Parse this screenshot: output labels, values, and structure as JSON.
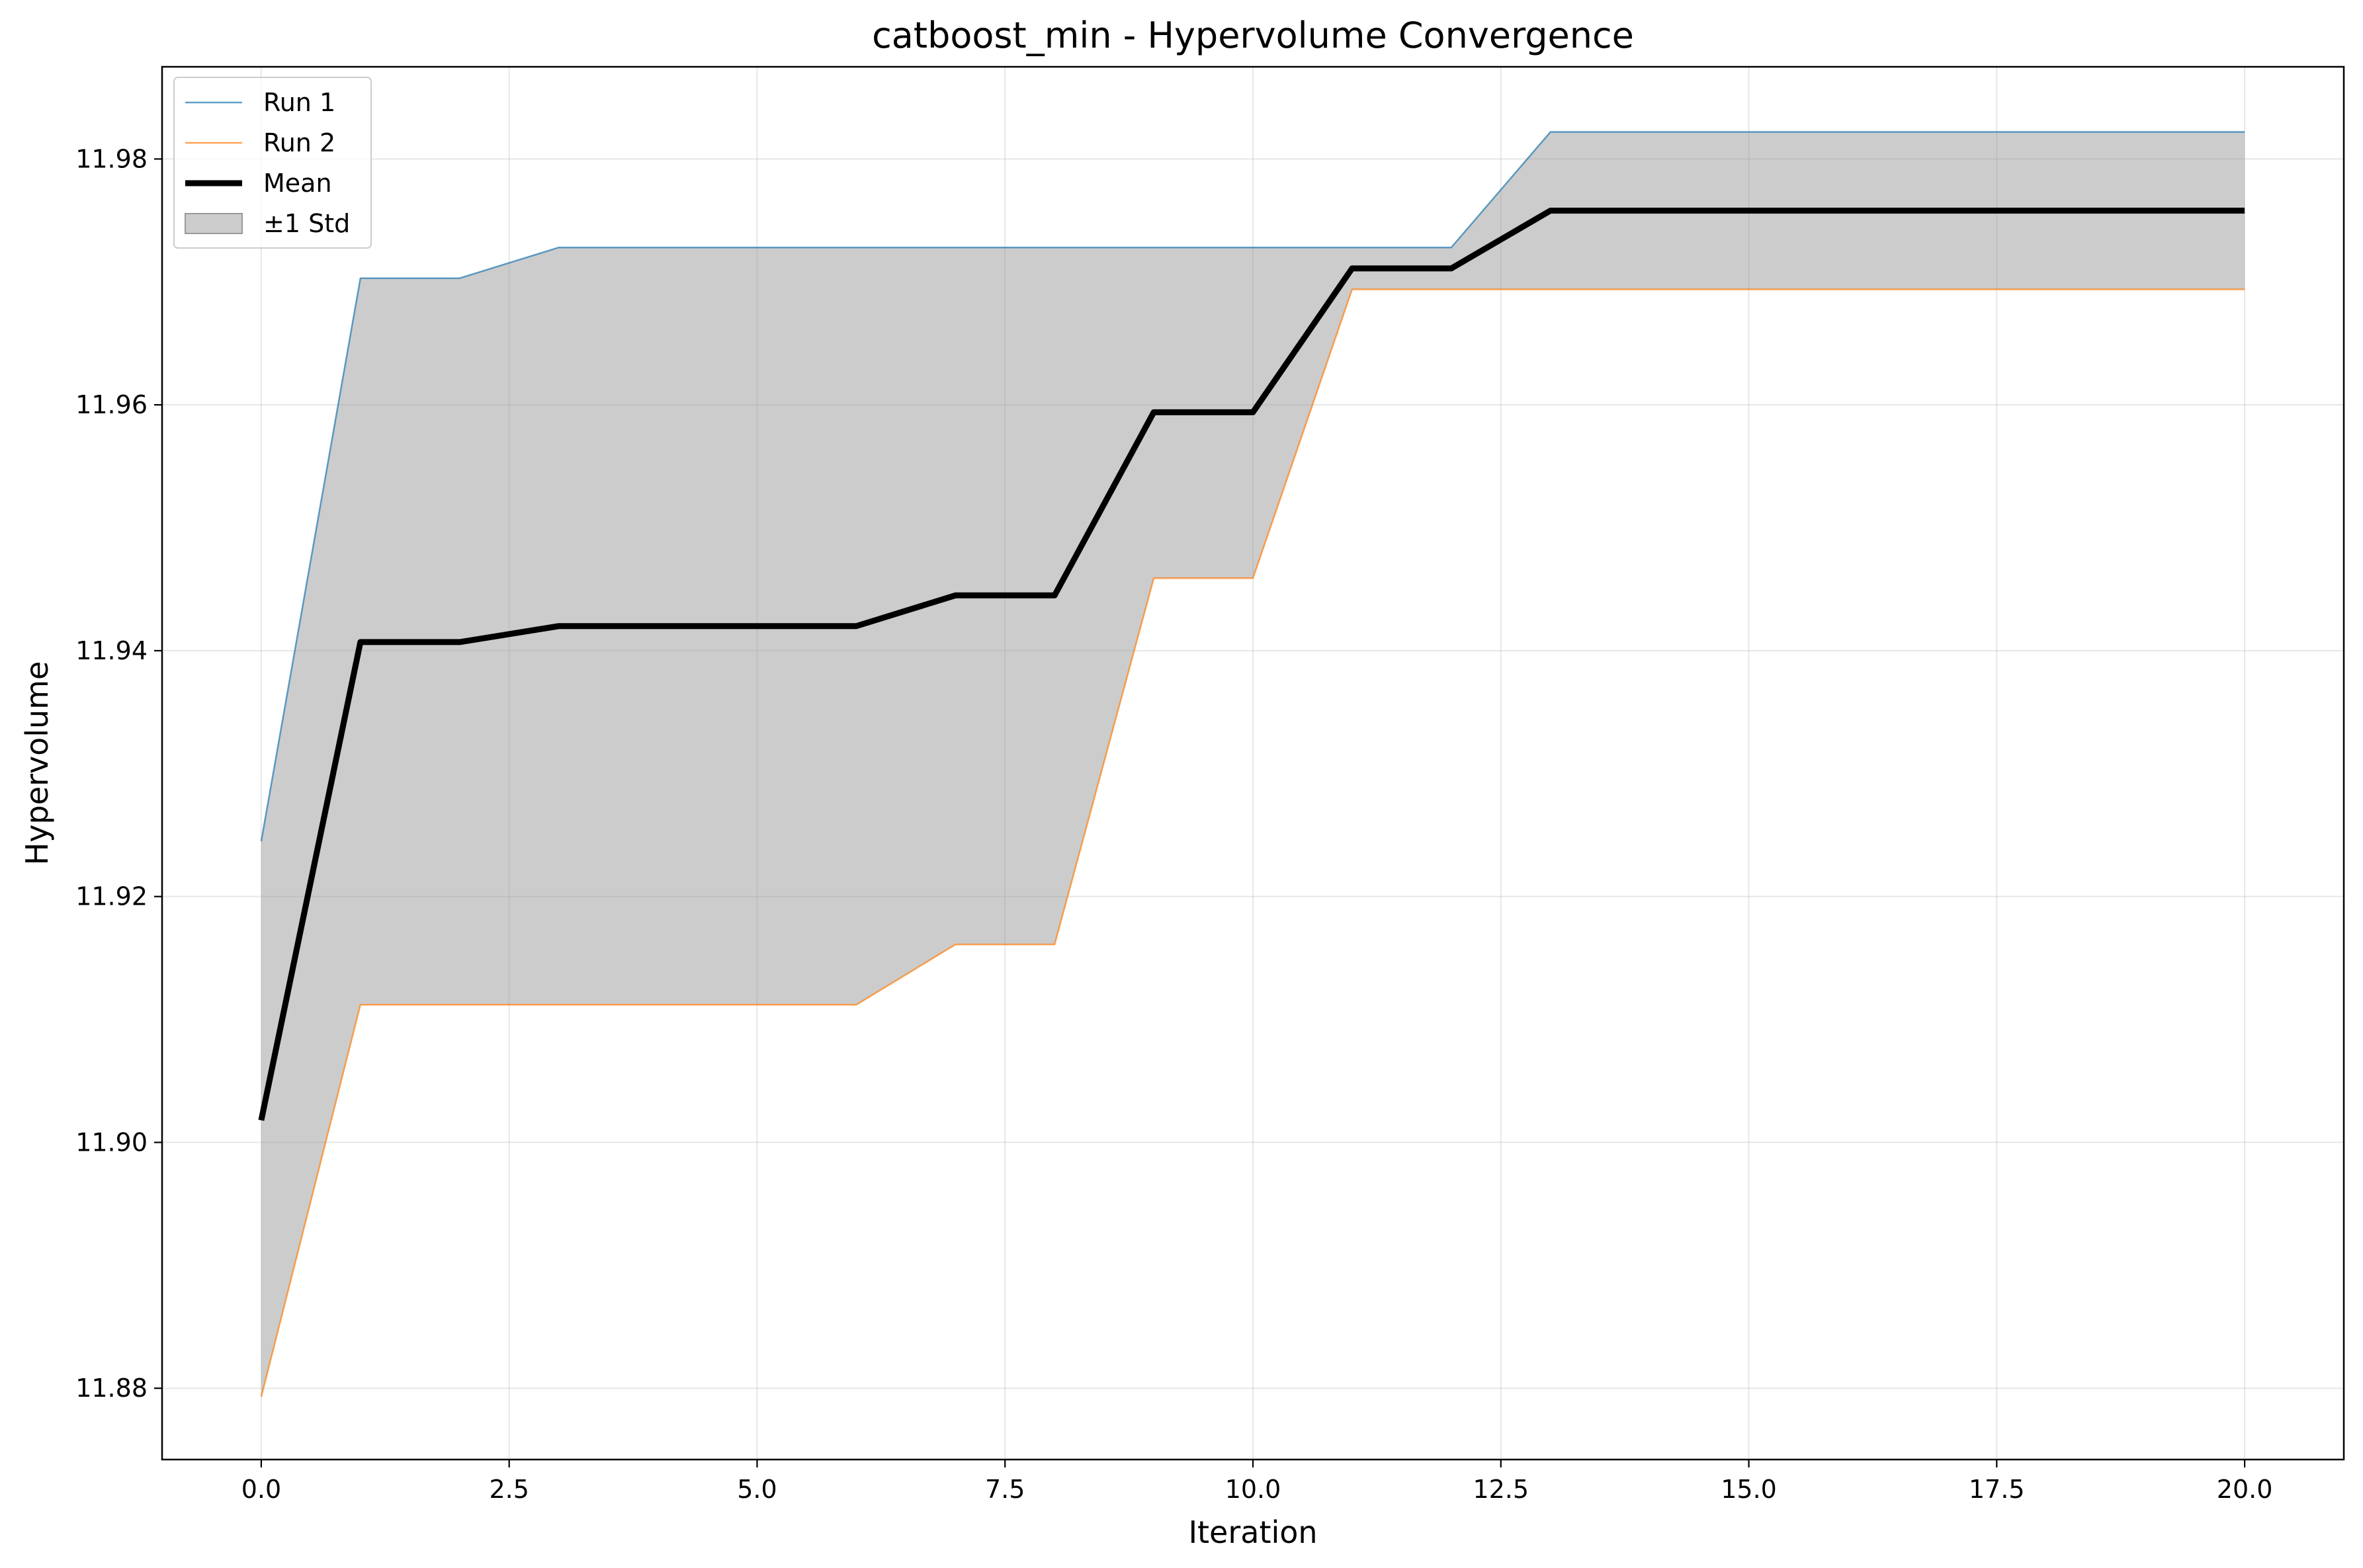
{
  "chart_data": {
    "type": "line",
    "title": "catboost_min - Hypervolume Convergence",
    "xlabel": "Iteration",
    "ylabel": "Hypervolume",
    "xlim": [
      -1.0,
      21.0
    ],
    "ylim": [
      11.8742,
      11.9875
    ],
    "xticks": [
      0.0,
      2.5,
      5.0,
      7.5,
      10.0,
      12.5,
      15.0,
      17.5,
      20.0
    ],
    "xtick_labels": [
      "0.0",
      "2.5",
      "5.0",
      "7.5",
      "10.0",
      "12.5",
      "15.0",
      "17.5",
      "20.0"
    ],
    "yticks": [
      11.88,
      11.9,
      11.92,
      11.94,
      11.96,
      11.98
    ],
    "ytick_labels": [
      "11.88",
      "11.90",
      "11.92",
      "11.94",
      "11.96",
      "11.98"
    ],
    "grid": true,
    "legend_position": "upper-left",
    "x": [
      0,
      1,
      2,
      3,
      4,
      5,
      6,
      7,
      8,
      9,
      10,
      11,
      12,
      13,
      14,
      15,
      16,
      17,
      18,
      19,
      20
    ],
    "series": [
      {
        "name": "Run 1",
        "color": "#1f77b4",
        "values": [
          11.9245,
          11.9703,
          11.9703,
          11.9728,
          11.9728,
          11.9728,
          11.9728,
          11.9728,
          11.9728,
          11.9728,
          11.9728,
          11.9728,
          11.9728,
          11.9822,
          11.9822,
          11.9822,
          11.9822,
          11.9822,
          11.9822,
          11.9822,
          11.9822
        ]
      },
      {
        "name": "Run 2",
        "color": "#ff7f0e",
        "values": [
          11.8793,
          11.9112,
          11.9112,
          11.9112,
          11.9112,
          11.9112,
          11.9112,
          11.9161,
          11.9161,
          11.9459,
          11.9459,
          11.9694,
          11.9694,
          11.9694,
          11.9694,
          11.9694,
          11.9694,
          11.9694,
          11.9694,
          11.9694,
          11.9694
        ]
      },
      {
        "name": "Mean",
        "color": "#000000",
        "values": [
          11.9018,
          11.9407,
          11.9407,
          11.942,
          11.942,
          11.942,
          11.942,
          11.9445,
          11.9445,
          11.9594,
          11.9594,
          11.9711,
          11.9711,
          11.9758,
          11.9758,
          11.9758,
          11.9758,
          11.9758,
          11.9758,
          11.9758,
          11.9758
        ]
      }
    ],
    "band": {
      "name": "±1 Std",
      "color": "#999999",
      "lower": [
        11.8793,
        11.9112,
        11.9112,
        11.9112,
        11.9112,
        11.9112,
        11.9112,
        11.9161,
        11.9161,
        11.9459,
        11.9459,
        11.9694,
        11.9694,
        11.9694,
        11.9694,
        11.9694,
        11.9694,
        11.9694,
        11.9694,
        11.9694,
        11.9694
      ],
      "upper": [
        11.9245,
        11.9703,
        11.9703,
        11.9728,
        11.9728,
        11.9728,
        11.9728,
        11.9728,
        11.9728,
        11.9728,
        11.9728,
        11.9728,
        11.9728,
        11.9822,
        11.9822,
        11.9822,
        11.9822,
        11.9822,
        11.9822,
        11.9822,
        11.9822
      ]
    }
  }
}
